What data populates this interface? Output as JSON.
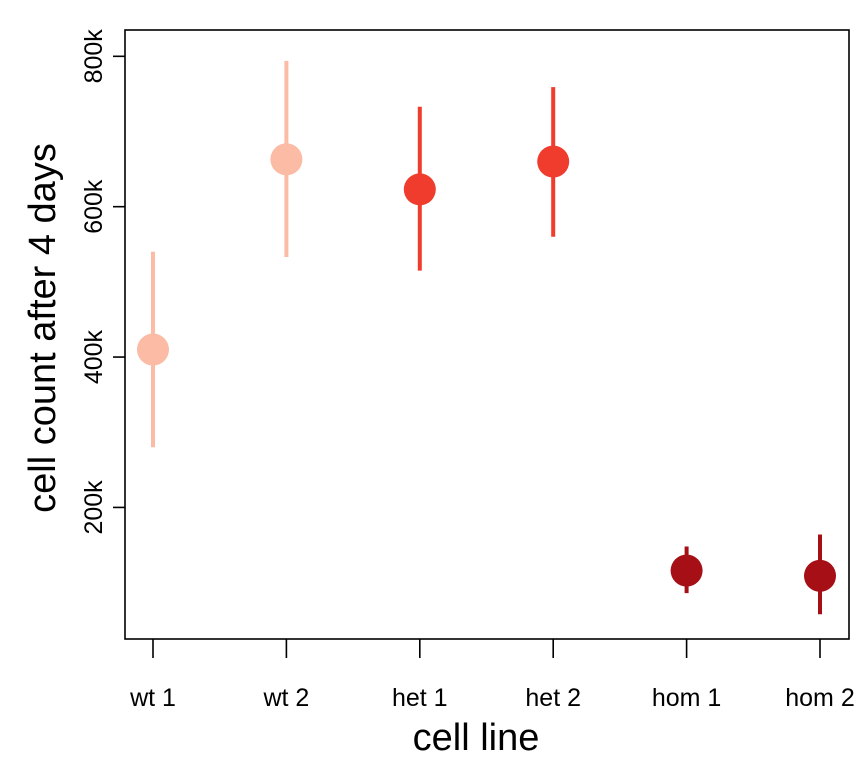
{
  "chart_data": {
    "type": "scatter",
    "xlabel": "cell line",
    "ylabel": "cell count after 4 days",
    "categories": [
      "wt 1",
      "wt 2",
      "het 1",
      "het 2",
      "hom 1",
      "hom 2"
    ],
    "ylim": [
      25000,
      835000
    ],
    "yticks": [
      200000,
      400000,
      600000,
      800000
    ],
    "ytick_labels": [
      "200k",
      "400k",
      "600k",
      "800k"
    ],
    "grid": false,
    "points": [
      {
        "category": "wt 1",
        "y": 410000,
        "lower": 280000,
        "upper": 540000,
        "color": "#fbbba4"
      },
      {
        "category": "wt 2",
        "y": 663000,
        "lower": 533000,
        "upper": 794000,
        "color": "#fbbba4"
      },
      {
        "category": "het 1",
        "y": 623000,
        "lower": 515000,
        "upper": 733000,
        "color": "#ef3c2c"
      },
      {
        "category": "het 2",
        "y": 660000,
        "lower": 560000,
        "upper": 759000,
        "color": "#ef3c2c"
      },
      {
        "category": "hom 1",
        "y": 116000,
        "lower": 86000,
        "upper": 148000,
        "color": "#a50f15"
      },
      {
        "category": "hom 2",
        "y": 109000,
        "lower": 58000,
        "upper": 164000,
        "color": "#a50f15"
      }
    ]
  }
}
